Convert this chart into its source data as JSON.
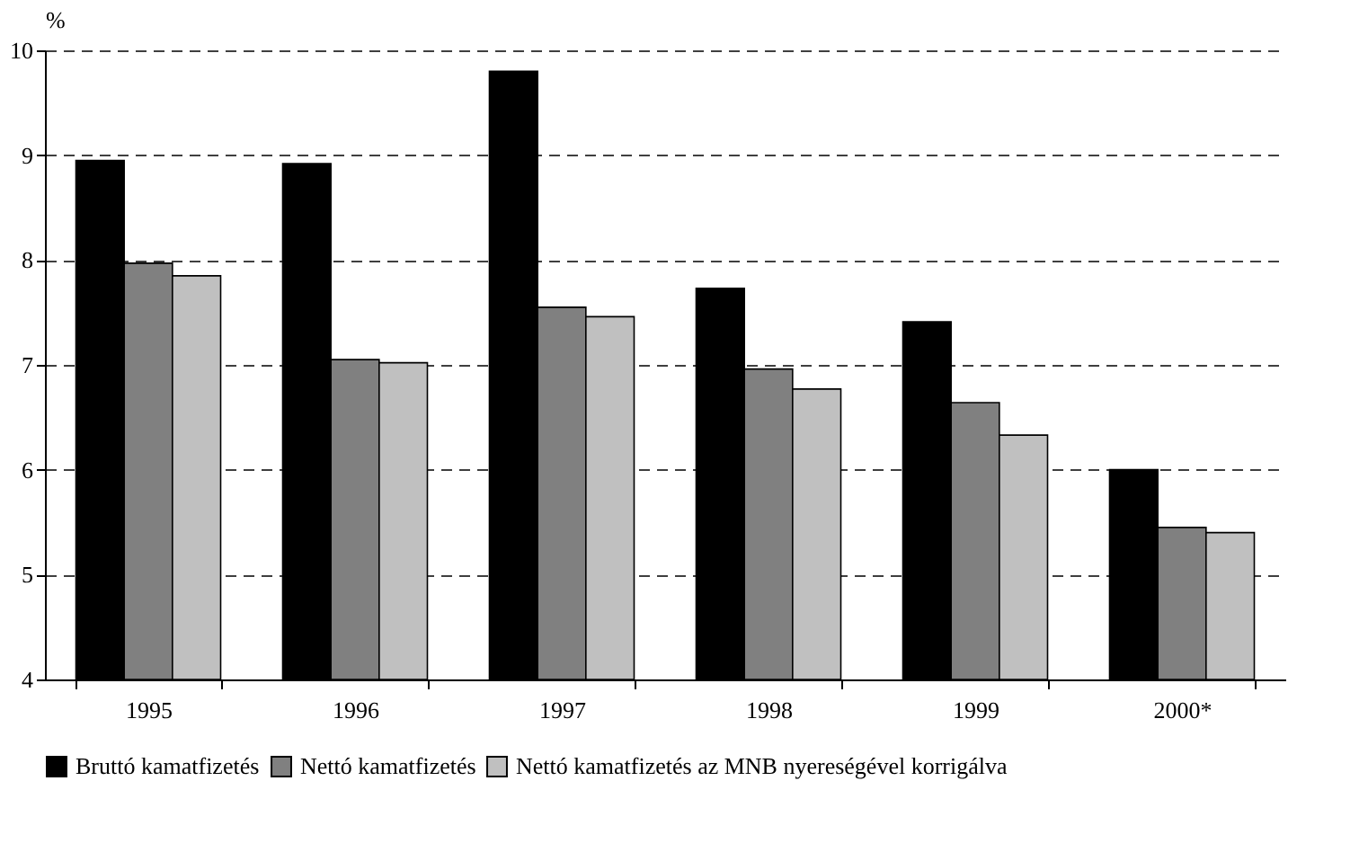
{
  "chart_data": {
    "type": "bar",
    "ylabel": "%",
    "categories": [
      "1995",
      "1996",
      "1997",
      "1998",
      "1999",
      "2000*"
    ],
    "series": [
      {
        "name": "Bruttó kamatfizetés",
        "color": "#000000",
        "values": [
          8.95,
          8.92,
          9.8,
          7.73,
          7.41,
          6.0
        ]
      },
      {
        "name": "Nettó kamatfizetés",
        "color": "#808080",
        "values": [
          7.97,
          7.05,
          7.55,
          6.96,
          6.64,
          5.45
        ]
      },
      {
        "name": "Nettó kamatfizetés az MNB nyereségével korrigálva",
        "color": "#c0c0c0",
        "values": [
          7.85,
          7.02,
          7.46,
          6.77,
          6.33,
          5.4
        ]
      }
    ],
    "ylim": [
      4,
      10
    ],
    "yticks": [
      4,
      5,
      6,
      7,
      8,
      9,
      10
    ],
    "grid": "y",
    "legend": "bottom"
  }
}
